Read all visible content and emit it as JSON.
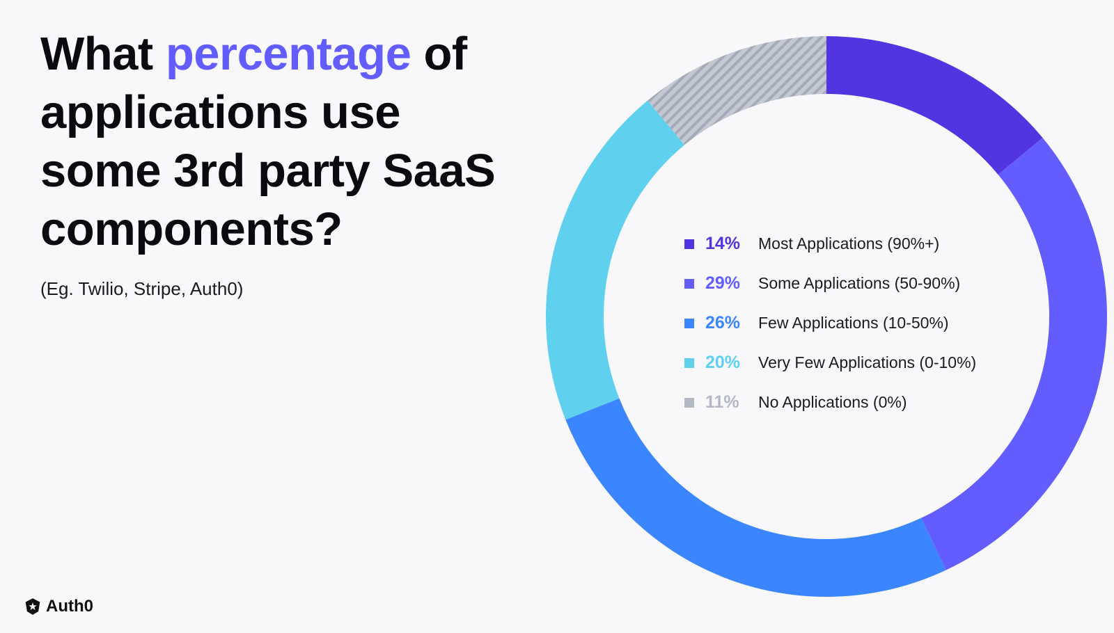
{
  "heading": {
    "part1": "What ",
    "accent": "percentage",
    "part2": " of applications use some 3rd party SaaS components?"
  },
  "subtitle": "(Eg. Twilio, Stripe, Auth0)",
  "brand": {
    "name": "Auth0",
    "icon": "auth0-shield-icon"
  },
  "chart_data": {
    "type": "pie",
    "variant": "donut",
    "title": "What percentage of applications use some 3rd party SaaS components?",
    "legend_position": "center",
    "slices": [
      {
        "value": 14,
        "pct_label": "14%",
        "label": "Most Applications (90%+)",
        "color": "#5235e0"
      },
      {
        "value": 29,
        "pct_label": "29%",
        "label": "Some Applications (50-90%)",
        "color": "#635dff"
      },
      {
        "value": 26,
        "pct_label": "26%",
        "label": "Few Applications (10-50%)",
        "color": "#3b86ff"
      },
      {
        "value": 20,
        "pct_label": "20%",
        "label": "Very Few Applications (0-10%)",
        "color": "#5fd0ee"
      },
      {
        "value": 11,
        "pct_label": "11%",
        "label": "No Applications (0%)",
        "color": "#b3b8c5",
        "pattern": "hatched"
      }
    ]
  }
}
